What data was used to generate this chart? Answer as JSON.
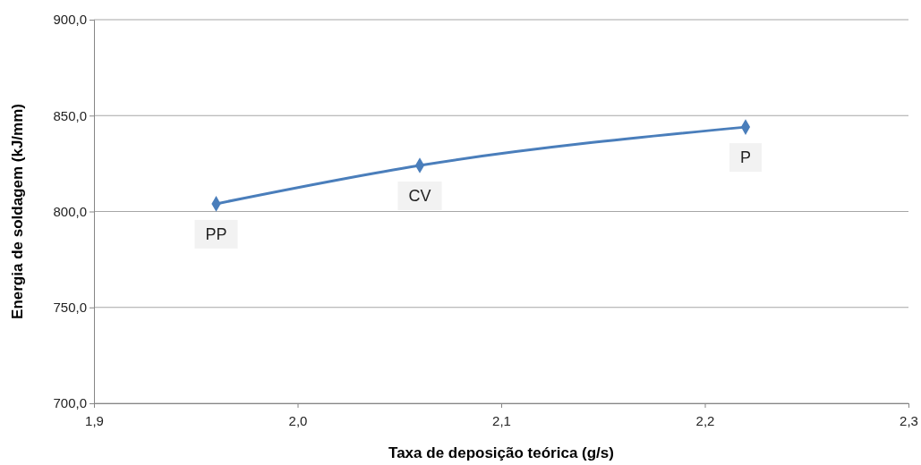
{
  "chart_data": {
    "type": "line",
    "xlabel": "Taxa de deposição teórica (g/s)",
    "ylabel": "Energia de soldagem (kJ/mm)",
    "x": [
      1.96,
      2.06,
      2.22
    ],
    "series": [
      {
        "color": "#4a7ebb",
        "values": [
          804,
          824,
          844
        ]
      }
    ],
    "xlim": [
      1.9,
      2.3
    ],
    "xticks": [
      {
        "value": 1.9,
        "label": "1,9"
      },
      {
        "value": 2.0,
        "label": "2,0"
      },
      {
        "value": 2.1,
        "label": "2,1"
      },
      {
        "value": 2.2,
        "label": "2,2"
      },
      {
        "value": 2.3,
        "label": "2,3"
      }
    ],
    "ylim": [
      700,
      900
    ],
    "yticks": [
      {
        "value": 700,
        "label": "700,0"
      },
      {
        "value": 750,
        "label": "750,0"
      },
      {
        "value": 800,
        "label": "800,0"
      },
      {
        "value": 850,
        "label": "850,0"
      },
      {
        "value": 900,
        "label": "900,0"
      }
    ],
    "grid": "y",
    "marker": "diamond",
    "line_style": "solid",
    "annotations": [
      {
        "text": "PP",
        "x": 1.96,
        "y": 804
      },
      {
        "text": "CV",
        "x": 2.06,
        "y": 824
      },
      {
        "text": "P",
        "x": 2.22,
        "y": 844
      }
    ]
  }
}
